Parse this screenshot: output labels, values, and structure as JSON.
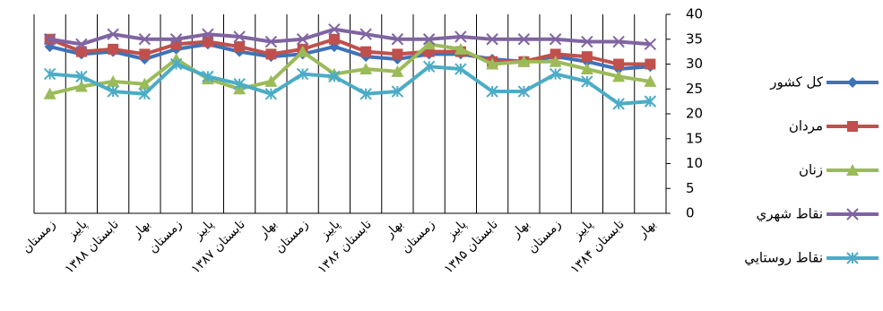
{
  "chart_data": {
    "type": "line",
    "categories": [
      "زمستان",
      "پاییز",
      "تابستان ۱۳۸۸",
      "بهار",
      "زمستان",
      "پاییز",
      "تابستان ۱۳۸۷",
      "بهار",
      "زمستان",
      "پاییز",
      "تابستان ۱۳۸۶",
      "بهار",
      "زمستان",
      "پاییز",
      "تابستان ۱۳۸۵",
      "بهار",
      "زمستان",
      "پاییز",
      "تابستان ۱۳۸۴",
      "بهار"
    ],
    "series": [
      {
        "name": "كل كشور",
        "color": "#3f72b8",
        "marker": "diamond",
        "values": [
          33.5,
          32,
          32.5,
          31,
          33,
          34,
          32.5,
          31.5,
          32,
          33.5,
          31.5,
          31,
          32,
          32,
          31,
          30.5,
          31.5,
          30.5,
          29,
          29.5
        ]
      },
      {
        "name": "مردان",
        "color": "#c0504d",
        "marker": "square",
        "values": [
          35,
          32.5,
          33,
          32,
          34,
          34.5,
          33.5,
          32,
          33,
          35,
          32.5,
          32,
          32.5,
          32.5,
          30.5,
          30.5,
          32,
          31.5,
          30,
          30
        ]
      },
      {
        "name": "زنان",
        "color": "#9bbb59",
        "marker": "triangle",
        "values": [
          24,
          25.5,
          26.5,
          26,
          31,
          27,
          25,
          26.5,
          32.5,
          28,
          29,
          28.5,
          34,
          33,
          30,
          30.5,
          30.5,
          29,
          27.5,
          26.5
        ]
      },
      {
        "name": "نقاط شهري",
        "color": "#8064a2",
        "marker": "x",
        "values": [
          35,
          34,
          36,
          35,
          35,
          36,
          35.5,
          34.5,
          35,
          37,
          36,
          35,
          35,
          35.5,
          35,
          35,
          35,
          34.5,
          34.5,
          34
        ]
      },
      {
        "name": "نقاط روستايي",
        "color": "#4bacc6",
        "marker": "star",
        "values": [
          28,
          27.5,
          24.5,
          24,
          30,
          27.5,
          26,
          24,
          28,
          27.5,
          24,
          24.5,
          29.5,
          29,
          24.5,
          24.5,
          28,
          26.5,
          22,
          22.5
        ]
      }
    ],
    "ylim": [
      0,
      40
    ],
    "yticks": [
      0,
      5,
      10,
      15,
      20,
      25,
      30,
      35,
      40
    ],
    "y_axis_side": "right",
    "grid": "x",
    "legend": "right"
  }
}
